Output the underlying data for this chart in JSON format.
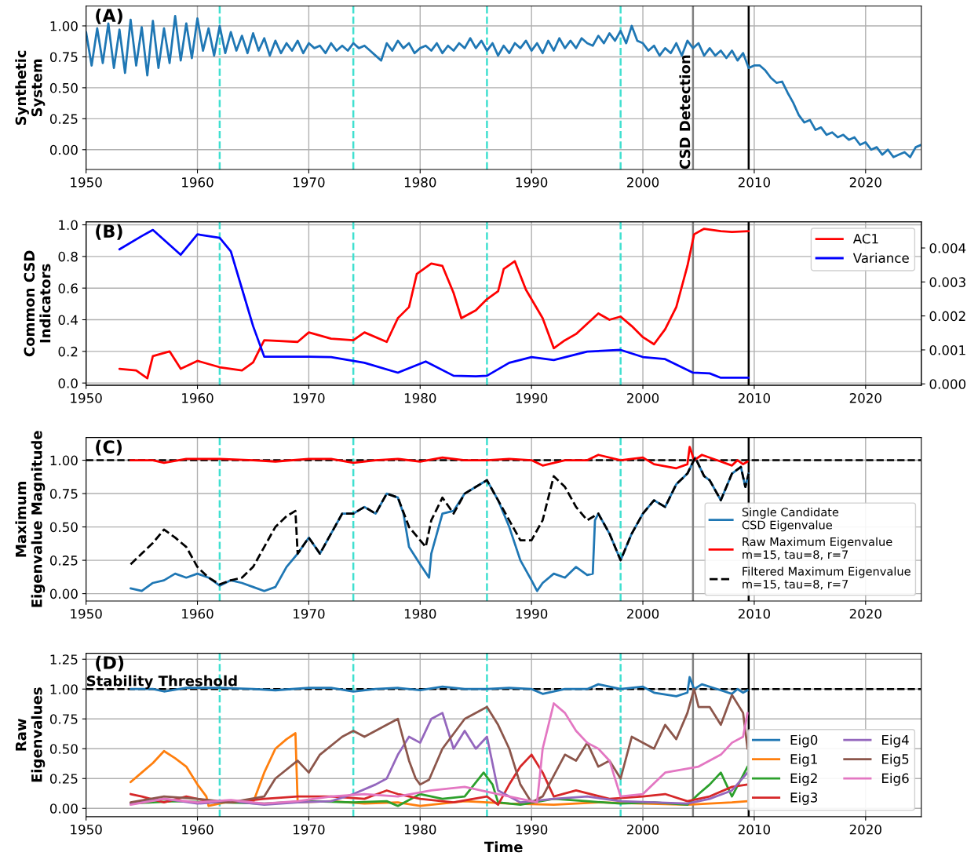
{
  "chart_data": [
    {
      "type": "line",
      "ylabel": "Synthetic\nSystem",
      "annotations": [
        "(A)"
      ],
      "xlim": [
        1950,
        2025
      ],
      "xticks": [
        1950,
        1960,
        1970,
        1980,
        1990,
        2000,
        2010,
        2020
      ],
      "ylim": [
        -0.16,
        1.16
      ],
      "yticks": [
        {
          "value": 0,
          "label": "0.00"
        },
        {
          "value": 0.25,
          "label": "0.25"
        },
        {
          "value": 0.5,
          "label": "0.50"
        },
        {
          "value": 0.75,
          "label": "0.75"
        },
        {
          "value": 1.0,
          "label": "1.00"
        }
      ],
      "grid": true,
      "legend": false,
      "ref_lines": [
        {
          "axis": "x",
          "value": 1962,
          "color": "#40e0d0",
          "line_style": "dashed"
        },
        {
          "axis": "x",
          "value": 1974,
          "color": "#40e0d0",
          "line_style": "dashed"
        },
        {
          "axis": "x",
          "value": 1986,
          "color": "#40e0d0",
          "line_style": "dashed"
        },
        {
          "axis": "x",
          "value": 1998,
          "color": "#40e0d0",
          "line_style": "dashed"
        },
        {
          "axis": "x",
          "value": 2004.5,
          "label": "CSD Detection",
          "color": "#808080",
          "line_style": "solid"
        },
        {
          "axis": "x",
          "value": 2009.5,
          "color": "#000000",
          "line_style": "solid"
        }
      ],
      "series": [
        {
          "color": "#1f77b4",
          "x": [
            1950,
            1950.5,
            1951,
            1951.5,
            1952,
            1952.5,
            1953,
            1953.5,
            1954,
            1954.5,
            1955,
            1955.5,
            1956,
            1956.5,
            1957,
            1957.5,
            1958,
            1958.5,
            1959,
            1959.5,
            1960,
            1960.5,
            1961,
            1961.5,
            1962,
            1962.5,
            1963,
            1963.5,
            1964,
            1964.5,
            1965,
            1965.5,
            1966,
            1966.5,
            1967,
            1967.5,
            1968,
            1968.5,
            1969,
            1969.5,
            1970,
            1970.5,
            1971,
            1971.5,
            1972,
            1972.5,
            1973,
            1973.5,
            1974,
            1974.5,
            1975,
            1975.5,
            1976,
            1976.5,
            1977,
            1977.5,
            1978,
            1978.5,
            1979,
            1979.5,
            1980,
            1980.5,
            1981,
            1981.5,
            1982,
            1982.5,
            1983,
            1983.5,
            1984,
            1984.5,
            1985,
            1985.5,
            1986,
            1986.5,
            1987,
            1987.5,
            1988,
            1988.5,
            1989,
            1989.5,
            1990,
            1990.5,
            1991,
            1991.5,
            1992,
            1992.5,
            1993,
            1993.5,
            1994,
            1994.5,
            1995,
            1995.5,
            1996,
            1996.5,
            1997,
            1997.5,
            1998,
            1998.5,
            1999,
            1999.5,
            2000,
            2000.5,
            2001,
            2001.5,
            2002,
            2002.5,
            2003,
            2003.5,
            2004,
            2004.5,
            2005,
            2005.5,
            2006,
            2006.5,
            2007,
            2007.5,
            2008,
            2008.5,
            2009,
            2009.5,
            2010,
            2010.5,
            2011,
            2011.5,
            2012,
            2012.5,
            2013,
            2013.5,
            2014,
            2014.5,
            2015,
            2015.5,
            2016,
            2016.5,
            2017,
            2017.5,
            2018,
            2018.5,
            2019,
            2019.5,
            2020,
            2020.5,
            2021,
            2021.5,
            2022,
            2022.5,
            2023,
            2023.5,
            2024,
            2024.5,
            2025
          ],
          "values": [
            0.95,
            0.68,
            0.98,
            0.7,
            1.02,
            0.66,
            0.97,
            0.62,
            1.05,
            0.68,
            0.99,
            0.6,
            1.04,
            0.66,
            0.98,
            0.7,
            1.08,
            0.72,
            1.02,
            0.74,
            1.06,
            0.8,
            0.98,
            0.76,
            1.0,
            0.78,
            0.95,
            0.8,
            0.92,
            0.78,
            0.94,
            0.8,
            0.9,
            0.76,
            0.88,
            0.78,
            0.86,
            0.8,
            0.88,
            0.78,
            0.86,
            0.82,
            0.84,
            0.78,
            0.86,
            0.8,
            0.84,
            0.8,
            0.86,
            0.82,
            0.84,
            0.8,
            0.76,
            0.72,
            0.86,
            0.8,
            0.88,
            0.82,
            0.86,
            0.78,
            0.82,
            0.84,
            0.8,
            0.86,
            0.78,
            0.84,
            0.8,
            0.86,
            0.82,
            0.9,
            0.82,
            0.88,
            0.8,
            0.86,
            0.76,
            0.84,
            0.78,
            0.86,
            0.82,
            0.88,
            0.8,
            0.86,
            0.78,
            0.88,
            0.8,
            0.9,
            0.82,
            0.88,
            0.82,
            0.9,
            0.86,
            0.84,
            0.92,
            0.86,
            0.94,
            0.88,
            0.96,
            0.86,
            1.0,
            0.88,
            0.86,
            0.8,
            0.84,
            0.76,
            0.82,
            0.78,
            0.86,
            0.76,
            0.88,
            0.82,
            0.86,
            0.76,
            0.82,
            0.76,
            0.8,
            0.74,
            0.8,
            0.72,
            0.78,
            0.66,
            0.68,
            0.68,
            0.64,
            0.58,
            0.54,
            0.55,
            0.46,
            0.38,
            0.28,
            0.22,
            0.24,
            0.16,
            0.18,
            0.12,
            0.14,
            0.1,
            0.12,
            0.08,
            0.1,
            0.04,
            0.06,
            0.0,
            0.02,
            -0.04,
            0.0,
            -0.06,
            -0.04,
            -0.02,
            -0.06,
            0.02,
            0.04
          ]
        }
      ]
    },
    {
      "type": "line",
      "ylabel": "Common CSD\nIndicators",
      "annotations": [
        "(B)"
      ],
      "xlim": [
        1950,
        2025
      ],
      "xticks": [
        1950,
        1960,
        1970,
        1980,
        1990,
        2000,
        2010,
        2020
      ],
      "ylim": [
        -0.014,
        1.019
      ],
      "yticks": [
        {
          "value": 0,
          "label": "0.0"
        },
        {
          "value": 0.2,
          "label": "0.2"
        },
        {
          "value": 0.4,
          "label": "0.4"
        },
        {
          "value": 0.6,
          "label": "0.6"
        },
        {
          "value": 0.8,
          "label": "0.8"
        },
        {
          "value": 1.0,
          "label": "1.0"
        }
      ],
      "y2lim": [
        -4e-05,
        0.00477
      ],
      "y2ticks": [
        {
          "value": 0,
          "label": "0.000"
        },
        {
          "value": 0.001,
          "label": "0.001"
        },
        {
          "value": 0.002,
          "label": "0.002"
        },
        {
          "value": 0.003,
          "label": "0.003"
        },
        {
          "value": 0.004,
          "label": "0.004"
        }
      ],
      "grid": true,
      "legend": "top right",
      "ref_lines": [
        {
          "axis": "x",
          "value": 1962,
          "color": "#40e0d0",
          "line_style": "dashed"
        },
        {
          "axis": "x",
          "value": 1974,
          "color": "#40e0d0",
          "line_style": "dashed"
        },
        {
          "axis": "x",
          "value": 1986,
          "color": "#40e0d0",
          "line_style": "dashed"
        },
        {
          "axis": "x",
          "value": 1998,
          "color": "#40e0d0",
          "line_style": "dashed"
        },
        {
          "axis": "x",
          "value": 2004.5,
          "color": "#808080",
          "line_style": "solid"
        },
        {
          "axis": "x",
          "value": 2009.5,
          "color": "#000000",
          "line_style": "solid"
        }
      ],
      "series": [
        {
          "name": "AC1",
          "color": "#ff0000",
          "x": [
            1953,
            1954.5,
            1955.5,
            1956,
            1957.5,
            1958.5,
            1960,
            1962,
            1964,
            1965,
            1965.7,
            1966,
            1969,
            1970,
            1972,
            1974,
            1975,
            1977,
            1978,
            1979,
            1979.7,
            1981,
            1982,
            1983,
            1983.7,
            1985,
            1986,
            1987,
            1987.5,
            1988.5,
            1989.5,
            1991,
            1992,
            1993,
            1994,
            1996,
            1997,
            1998,
            1999,
            2000,
            2001,
            2002,
            2003,
            2004,
            2004.6,
            2005.5,
            2007,
            2008,
            2009.5
          ],
          "values": [
            0.09,
            0.08,
            0.03,
            0.17,
            0.2,
            0.09,
            0.14,
            0.1,
            0.08,
            0.13,
            0.23,
            0.27,
            0.26,
            0.32,
            0.28,
            0.27,
            0.32,
            0.26,
            0.41,
            0.48,
            0.69,
            0.755,
            0.74,
            0.57,
            0.41,
            0.46,
            0.53,
            0.58,
            0.72,
            0.77,
            0.59,
            0.41,
            0.22,
            0.27,
            0.31,
            0.44,
            0.4,
            0.42,
            0.36,
            0.29,
            0.245,
            0.34,
            0.48,
            0.74,
            0.94,
            0.975,
            0.96,
            0.955,
            0.96
          ]
        },
        {
          "name": "Variance",
          "color": "#0000ff",
          "axis": "y2",
          "x": [
            1953,
            1955,
            1956,
            1958.5,
            1960,
            1962,
            1963,
            1964,
            1965,
            1966,
            1970,
            1972,
            1975,
            1978,
            1980.5,
            1983,
            1985,
            1986,
            1988,
            1990,
            1992,
            1995,
            1998,
            2000,
            2002,
            2004.5,
            2006,
            2007,
            2009.5
          ],
          "values": [
            0.00396,
            0.00435,
            0.00453,
            0.0038,
            0.0044,
            0.0043,
            0.0039,
            0.0028,
            0.0017,
            0.0008,
            0.0008,
            0.00079,
            0.00062,
            0.00033,
            0.00066,
            0.00024,
            0.00022,
            0.00024,
            0.00062,
            0.00079,
            0.0007,
            0.00095,
            0.001,
            0.00079,
            0.00073,
            0.00033,
            0.00031,
            0.00018,
            0.00018
          ]
        }
      ]
    },
    {
      "type": "line",
      "ylabel": "Maximum\nEigenvalue Magnitude",
      "annotations": [
        "(C)"
      ],
      "xlim": [
        1950,
        2025
      ],
      "xticks": [
        1950,
        1960,
        1970,
        1980,
        1990,
        2000,
        2010,
        2020
      ],
      "ylim": [
        -0.055,
        1.17
      ],
      "yticks": [
        {
          "value": 0,
          "label": "0.00"
        },
        {
          "value": 0.25,
          "label": "0.25"
        },
        {
          "value": 0.5,
          "label": "0.50"
        },
        {
          "value": 0.75,
          "label": "0.75"
        },
        {
          "value": 1.0,
          "label": "1.00"
        }
      ],
      "grid": true,
      "legend": "bottom right",
      "ref_lines": [
        {
          "axis": "y",
          "value": 1.0,
          "color": "#000000",
          "line_style": "dashed"
        },
        {
          "axis": "x",
          "value": 1962,
          "color": "#40e0d0",
          "line_style": "dashed"
        },
        {
          "axis": "x",
          "value": 1974,
          "color": "#40e0d0",
          "line_style": "dashed"
        },
        {
          "axis": "x",
          "value": 1986,
          "color": "#40e0d0",
          "line_style": "dashed"
        },
        {
          "axis": "x",
          "value": 1998,
          "color": "#40e0d0",
          "line_style": "dashed"
        },
        {
          "axis": "x",
          "value": 2004.5,
          "color": "#808080",
          "line_style": "solid"
        },
        {
          "axis": "x",
          "value": 2009.5,
          "color": "#000000",
          "line_style": "solid"
        }
      ],
      "series": [
        {
          "name": "Single Candidate\nCSD Eigenvalue",
          "color": "#1f77b4",
          "x": [
            1954,
            1955,
            1956,
            1957,
            1958,
            1959,
            1960,
            1961,
            1962,
            1963,
            1964,
            1965,
            1966,
            1967,
            1968,
            1969,
            1970,
            1971,
            1972,
            1973,
            1974,
            1975,
            1976,
            1977,
            1978,
            1978.5,
            1979,
            1980,
            1980.8,
            1981,
            1982,
            1983,
            1984,
            1985,
            1986,
            1987,
            1988,
            1989,
            1990,
            1990.5,
            1991,
            1992,
            1993,
            1994,
            1995,
            1995.5,
            1995.7,
            1996,
            1997,
            1998,
            1999,
            2000,
            2001,
            2002,
            2003,
            2004,
            2004.7,
            2005.5,
            2006,
            2007,
            2008,
            2008.8,
            2009.2,
            2009.5
          ],
          "values": [
            0.04,
            0.02,
            0.08,
            0.1,
            0.15,
            0.12,
            0.15,
            0.12,
            0.06,
            0.1,
            0.08,
            0.05,
            0.02,
            0.05,
            0.2,
            0.3,
            0.42,
            0.3,
            0.45,
            0.6,
            0.6,
            0.65,
            0.6,
            0.75,
            0.72,
            0.6,
            0.35,
            0.22,
            0.12,
            0.3,
            0.6,
            0.62,
            0.75,
            0.8,
            0.85,
            0.7,
            0.5,
            0.25,
            0.1,
            0.02,
            0.08,
            0.15,
            0.12,
            0.2,
            0.14,
            0.15,
            0.55,
            0.6,
            0.45,
            0.25,
            0.45,
            0.6,
            0.7,
            0.65,
            0.82,
            0.9,
            1.02,
            0.88,
            0.85,
            0.7,
            0.9,
            0.95,
            0.8,
            0.9
          ]
        },
        {
          "name": "Raw Maximum Eigenvalue\nm=15, tau=8, r=7",
          "color": "#ff0000",
          "x": [
            1954,
            1956,
            1957,
            1959,
            1962,
            1965,
            1967,
            1970,
            1972,
            1974,
            1976,
            1978,
            1980,
            1982,
            1984,
            1986,
            1988,
            1990,
            1991,
            1993,
            1995,
            1996,
            1998,
            2000,
            2001,
            2003,
            2004,
            2004.2,
            2004.6,
            2005.3,
            2007,
            2008,
            2008.5,
            2009,
            2009.4
          ],
          "values": [
            1.0,
            1.0,
            0.98,
            1.01,
            1.01,
            1.0,
            0.99,
            1.01,
            1.01,
            0.98,
            1.0,
            1.01,
            0.99,
            1.02,
            1.0,
            1.0,
            1.01,
            1.0,
            0.96,
            1.0,
            1.0,
            1.04,
            1.0,
            1.02,
            0.97,
            0.94,
            0.97,
            1.1,
            1.0,
            1.04,
            0.99,
            0.96,
            1.0,
            0.97,
            0.99
          ]
        },
        {
          "name": "Filtered Maximum Eigenvalue\nm=15, tau=8, r=7",
          "color": "#000000",
          "line_style": "dashed",
          "x": [
            1954,
            1955,
            1956,
            1957,
            1958,
            1959,
            1960,
            1961,
            1962,
            1963,
            1964,
            1965,
            1966,
            1967,
            1968,
            1968.8,
            1969,
            1970,
            1971,
            1972,
            1973,
            1974,
            1975,
            1976,
            1977,
            1978,
            1979,
            1980,
            1980.5,
            1981,
            1982,
            1983,
            1984,
            1985,
            1986,
            1987,
            1988,
            1989,
            1990,
            1991,
            1992,
            1993,
            1994,
            1995,
            1996,
            1997,
            1998,
            1999,
            2000,
            2001,
            2002,
            2003,
            2004,
            2004.7,
            2005.5,
            2006,
            2007,
            2008,
            2008.8,
            2009.2,
            2009.5
          ],
          "values": [
            0.22,
            0.3,
            0.38,
            0.48,
            0.42,
            0.35,
            0.2,
            0.12,
            0.07,
            0.1,
            0.12,
            0.2,
            0.35,
            0.5,
            0.58,
            0.62,
            0.3,
            0.42,
            0.3,
            0.45,
            0.6,
            0.6,
            0.65,
            0.6,
            0.75,
            0.72,
            0.5,
            0.4,
            0.35,
            0.55,
            0.72,
            0.6,
            0.75,
            0.8,
            0.85,
            0.7,
            0.55,
            0.4,
            0.4,
            0.55,
            0.88,
            0.8,
            0.65,
            0.55,
            0.6,
            0.45,
            0.25,
            0.45,
            0.6,
            0.7,
            0.65,
            0.82,
            0.9,
            1.02,
            0.88,
            0.85,
            0.7,
            0.9,
            0.95,
            0.8,
            0.9
          ]
        }
      ]
    },
    {
      "type": "line",
      "xlabel": "Time",
      "ylabel": "Raw\nEigenvalues",
      "annotations": [
        "(D)"
      ],
      "xlim": [
        1950,
        2025
      ],
      "xticks": [
        1950,
        1960,
        1970,
        1980,
        1990,
        2000,
        2010,
        2020
      ],
      "ylim": [
        -0.07,
        1.3
      ],
      "yticks": [
        {
          "value": 0,
          "label": "0.00"
        },
        {
          "value": 0.25,
          "label": "0.25"
        },
        {
          "value": 0.5,
          "label": "0.50"
        },
        {
          "value": 0.75,
          "label": "0.75"
        },
        {
          "value": 1.0,
          "label": "1.00"
        },
        {
          "value": 1.25,
          "label": "1.25"
        }
      ],
      "grid": true,
      "legend": "bottom right",
      "ref_lines": [
        {
          "axis": "y",
          "value": 1.0,
          "label": "Stability Threshold",
          "color": "#000000",
          "line_style": "dashed"
        },
        {
          "axis": "x",
          "value": 1962,
          "color": "#40e0d0",
          "line_style": "dashed"
        },
        {
          "axis": "x",
          "value": 1974,
          "color": "#40e0d0",
          "line_style": "dashed"
        },
        {
          "axis": "x",
          "value": 1986,
          "color": "#40e0d0",
          "line_style": "dashed"
        },
        {
          "axis": "x",
          "value": 1998,
          "color": "#40e0d0",
          "line_style": "dashed"
        },
        {
          "axis": "x",
          "value": 2004.5,
          "color": "#808080",
          "line_style": "solid"
        },
        {
          "axis": "x",
          "value": 2009.5,
          "color": "#000000",
          "line_style": "solid"
        }
      ],
      "series": [
        {
          "name": "Eig0",
          "color": "#1f77b4",
          "x": [
            1954,
            1956,
            1957,
            1959,
            1962,
            1965,
            1967,
            1970,
            1972,
            1974,
            1976,
            1978,
            1980,
            1982,
            1984,
            1986,
            1988,
            1990,
            1991,
            1993,
            1995,
            1996,
            1998,
            2000,
            2001,
            2003,
            2004,
            2004.2,
            2004.6,
            2005.3,
            2007,
            2008,
            2008.5,
            2009,
            2009.4
          ],
          "values": [
            1.0,
            1.0,
            0.98,
            1.01,
            1.01,
            1.0,
            0.99,
            1.01,
            1.01,
            0.98,
            1.0,
            1.01,
            0.99,
            1.02,
            1.0,
            1.0,
            1.01,
            1.0,
            0.96,
            1.0,
            1.0,
            1.04,
            1.0,
            1.02,
            0.97,
            0.94,
            0.97,
            1.1,
            1.0,
            1.04,
            0.99,
            0.96,
            1.0,
            0.97,
            0.99
          ]
        },
        {
          "name": "Eig1",
          "color": "#ff7f0e",
          "x": [
            1954,
            1955,
            1956,
            1957,
            1958,
            1959,
            1960,
            1960.8,
            1961,
            1963,
            1965,
            1966,
            1967,
            1968,
            1968.8,
            1969,
            1972,
            1975,
            1978,
            1980,
            1984,
            1988,
            1992,
            1996,
            2000,
            2004,
            2008,
            2009.4
          ],
          "values": [
            0.22,
            0.3,
            0.38,
            0.48,
            0.42,
            0.35,
            0.2,
            0.1,
            0.02,
            0.06,
            0.05,
            0.3,
            0.5,
            0.58,
            0.63,
            0.05,
            0.06,
            0.04,
            0.05,
            0.02,
            0.06,
            0.04,
            0.03,
            0.05,
            0.04,
            0.03,
            0.05,
            0.06
          ]
        },
        {
          "name": "Eig2",
          "color": "#2ca02c",
          "x": [
            1954,
            1958,
            1962,
            1966,
            1970,
            1974,
            1977,
            1978,
            1980,
            1982,
            1984,
            1985.7,
            1986.5,
            1987,
            1989,
            1992,
            1995,
            1998,
            2001,
            2004,
            2005,
            2006,
            2007,
            2008,
            2009.4
          ],
          "values": [
            0.04,
            0.06,
            0.05,
            0.04,
            0.06,
            0.05,
            0.06,
            0.02,
            0.12,
            0.08,
            0.1,
            0.3,
            0.2,
            0.05,
            0.03,
            0.08,
            0.06,
            0.04,
            0.05,
            0.03,
            0.12,
            0.2,
            0.3,
            0.1,
            0.35
          ]
        },
        {
          "name": "Eig3",
          "color": "#d62728",
          "x": [
            1954,
            1955,
            1957,
            1959,
            1961,
            1963,
            1966,
            1969,
            1972,
            1975,
            1977,
            1978,
            1980,
            1983,
            1986,
            1987,
            1988,
            1989,
            1990,
            1991,
            1992,
            1994,
            1997,
            2000,
            2002,
            2004,
            2006,
            2008,
            2009.4
          ],
          "values": [
            0.12,
            0.1,
            0.05,
            0.1,
            0.06,
            0.05,
            0.08,
            0.1,
            0.1,
            0.08,
            0.15,
            0.12,
            0.08,
            0.05,
            0.1,
            0.03,
            0.2,
            0.35,
            0.45,
            0.3,
            0.1,
            0.15,
            0.08,
            0.1,
            0.12,
            0.06,
            0.1,
            0.18,
            0.2
          ]
        },
        {
          "name": "Eig4",
          "color": "#9467bd",
          "x": [
            1954,
            1957,
            1960,
            1963,
            1966,
            1969,
            1972,
            1974,
            1976,
            1977,
            1978,
            1979,
            1980,
            1981,
            1982,
            1983,
            1984,
            1985,
            1986,
            1987,
            1989,
            1992,
            1995,
            1998,
            2001,
            2004,
            2006,
            2008,
            2009.4
          ],
          "values": [
            0.04,
            0.08,
            0.04,
            0.06,
            0.03,
            0.05,
            0.06,
            0.12,
            0.2,
            0.25,
            0.45,
            0.6,
            0.55,
            0.75,
            0.8,
            0.5,
            0.65,
            0.5,
            0.6,
            0.15,
            0.05,
            0.08,
            0.1,
            0.06,
            0.05,
            0.04,
            0.08,
            0.15,
            0.3
          ]
        },
        {
          "name": "Eig5",
          "color": "#8c564b",
          "x": [
            1954,
            1957,
            1960,
            1963,
            1966,
            1967,
            1969,
            1970,
            1971,
            1973,
            1974,
            1975,
            1977,
            1978,
            1979,
            1979.6,
            1980,
            1980.8,
            1982,
            1984,
            1986,
            1987,
            1988,
            1989,
            1990,
            1991,
            1993,
            1994,
            1995,
            1996,
            1997,
            1998,
            1999,
            2001,
            2002,
            2003,
            2004,
            2004.6,
            2005,
            2006,
            2007,
            2008,
            2009,
            2009.4
          ],
          "values": [
            0.05,
            0.1,
            0.08,
            0.05,
            0.1,
            0.25,
            0.4,
            0.3,
            0.45,
            0.6,
            0.65,
            0.6,
            0.7,
            0.75,
            0.4,
            0.25,
            0.2,
            0.24,
            0.5,
            0.75,
            0.85,
            0.7,
            0.5,
            0.2,
            0.05,
            0.1,
            0.45,
            0.4,
            0.55,
            0.35,
            0.4,
            0.25,
            0.6,
            0.5,
            0.7,
            0.58,
            0.8,
            1.0,
            0.85,
            0.85,
            0.7,
            0.95,
            0.8,
            0.5
          ]
        },
        {
          "name": "Eig6",
          "color": "#e377c2",
          "x": [
            1954,
            1957,
            1960,
            1963,
            1966,
            1969,
            1972,
            1975,
            1978,
            1981,
            1984,
            1987,
            1990.5,
            1991,
            1992,
            1993,
            1994,
            1995,
            1996,
            1997,
            1998,
            2000,
            2002,
            2005,
            2007,
            2008,
            2009,
            2009.4
          ],
          "values": [
            0.03,
            0.08,
            0.05,
            0.07,
            0.04,
            0.06,
            0.1,
            0.12,
            0.1,
            0.15,
            0.18,
            0.12,
            0.05,
            0.5,
            0.88,
            0.8,
            0.65,
            0.55,
            0.5,
            0.4,
            0.1,
            0.12,
            0.3,
            0.35,
            0.45,
            0.55,
            0.6,
            0.8
          ]
        }
      ]
    }
  ]
}
